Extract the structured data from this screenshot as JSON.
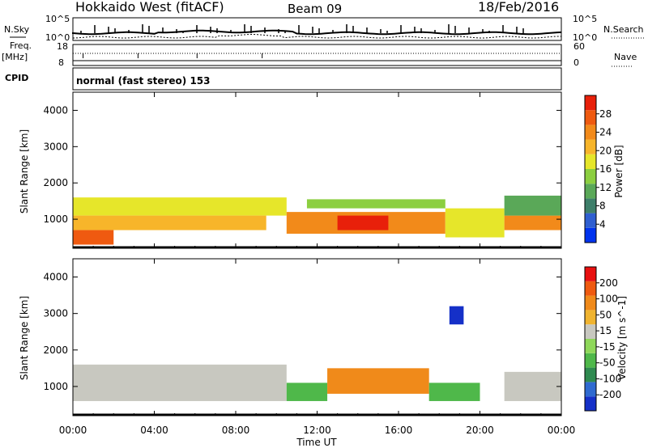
{
  "header": {
    "station": "Hokkaido West (fitACF)",
    "beam": "Beam 09",
    "date": "18/Feb/2016"
  },
  "top_panels": {
    "nsky_label": "N.Sky",
    "nsky_scale_hi": "10^5",
    "nsky_scale_lo": "10^0",
    "nsearch_label": "N.Search",
    "freq_label": "Freq.",
    "freq_unit": "[MHz]",
    "freq_hi": "18",
    "freq_lo": "8",
    "nave_label": "Nave",
    "nave_hi": "60",
    "nave_lo": "0",
    "cpid_label": "CPID",
    "cpid_value": "normal (fast stereo) 153"
  },
  "chart_data": [
    {
      "type": "heatmap",
      "name": "power",
      "ylabel": "Slant Range [km]",
      "ylim": [
        200,
        4500
      ],
      "yticks": [
        1000,
        2000,
        3000,
        4000
      ],
      "colorbar": {
        "label": "Power [dB]",
        "ticks": [
          "4",
          "8",
          "12",
          "16",
          "20",
          "24",
          "28"
        ],
        "colors": [
          "#0033ee",
          "#2f5fd0",
          "#3e7f6a",
          "#5aa858",
          "#8ccf40",
          "#e6e62a",
          "#f7b52a",
          "#f28a1a",
          "#ef5a10",
          "#e8200a"
        ]
      },
      "regions": [
        {
          "t": [
            0.0,
            10.5
          ],
          "range": [
            1100,
            1600
          ],
          "level": 5
        },
        {
          "t": [
            0.0,
            9.5
          ],
          "range": [
            700,
            1100
          ],
          "level": 6
        },
        {
          "t": [
            0.0,
            2.0
          ],
          "range": [
            300,
            700
          ],
          "level": 8
        },
        {
          "t": [
            10.5,
            18.3
          ],
          "range": [
            600,
            1200
          ],
          "level": 7
        },
        {
          "t": [
            13.0,
            15.5
          ],
          "range": [
            700,
            1100
          ],
          "level": 9
        },
        {
          "t": [
            11.5,
            18.3
          ],
          "range": [
            1300,
            1550
          ],
          "level": 4
        },
        {
          "t": [
            18.3,
            21.2
          ],
          "range": [
            500,
            1300
          ],
          "level": 5
        },
        {
          "t": [
            21.2,
            24.0
          ],
          "range": [
            700,
            1100
          ],
          "level": 7
        },
        {
          "t": [
            21.2,
            24.0
          ],
          "range": [
            1100,
            1650
          ],
          "level": 3
        }
      ]
    },
    {
      "type": "heatmap",
      "name": "velocity",
      "ylabel": "Slant Range [km]",
      "ylim": [
        200,
        4500
      ],
      "yticks": [
        1000,
        2000,
        3000,
        4000
      ],
      "colorbar": {
        "label": "Velocity [m s^-1]",
        "ticks": [
          "200",
          "100",
          "50",
          "15",
          "-15",
          "-50",
          "-100",
          "-200"
        ],
        "colors": [
          "#1530c8",
          "#2f6ad0",
          "#2f8a50",
          "#4fb84a",
          "#8fd85a",
          "#c8c8c0",
          "#f0b430",
          "#f08a1a",
          "#ef5a10",
          "#e81010"
        ]
      },
      "regions": [
        {
          "t": [
            0.0,
            10.5
          ],
          "range": [
            600,
            1600
          ],
          "level": 5
        },
        {
          "t": [
            10.5,
            12.5
          ],
          "range": [
            600,
            1100
          ],
          "level": 3
        },
        {
          "t": [
            12.5,
            17.5
          ],
          "range": [
            800,
            1500
          ],
          "level": 7
        },
        {
          "t": [
            17.5,
            20.0
          ],
          "range": [
            600,
            1100
          ],
          "level": 3
        },
        {
          "t": [
            18.5,
            19.2
          ],
          "range": [
            2700,
            3200
          ],
          "level": 0
        },
        {
          "t": [
            21.2,
            24.0
          ],
          "range": [
            600,
            1400
          ],
          "level": 5
        }
      ]
    }
  ],
  "x_axis": {
    "label": "Time UT",
    "ticks": [
      "00:00",
      "04:00",
      "08:00",
      "12:00",
      "16:00",
      "20:00",
      "00:00"
    ],
    "range_hours": [
      0,
      24
    ]
  }
}
